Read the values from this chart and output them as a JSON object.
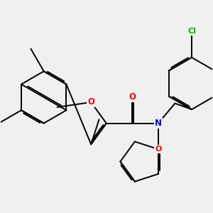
{
  "background_color": "#f0f0f0",
  "bond_color": "#000000",
  "atom_colors": {
    "O": "#ff0000",
    "N": "#0000ff",
    "Cl": "#00aa00",
    "C": "#000000"
  },
  "figsize": [
    3.0,
    3.0
  ],
  "dpi": 100,
  "bond_lw": 1.4
}
